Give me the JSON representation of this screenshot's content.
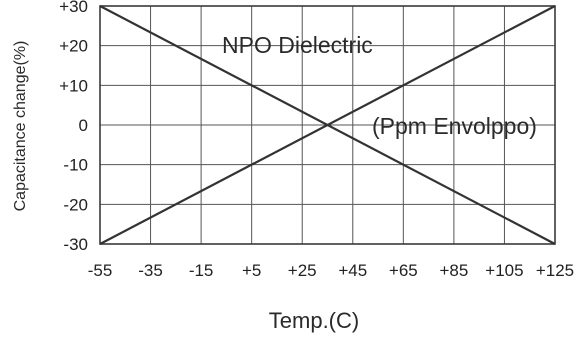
{
  "chart_data": {
    "type": "line",
    "xlabel": "Temp.(C)",
    "ylabel": "Capacitance change(%)",
    "x_ticks": [
      "-55",
      "-35",
      "-15",
      "+5",
      "+25",
      "+45",
      "+65",
      "+85",
      "+105",
      "+125"
    ],
    "y_ticks": [
      "+30",
      "+20",
      "+10",
      "0",
      "-10",
      "-20",
      "-30"
    ],
    "xlim": [
      -55,
      125
    ],
    "ylim": [
      -30,
      30
    ],
    "grid": true,
    "annotations": [
      "NPO Dielectric",
      "(Ppm Envolppo)"
    ],
    "series": [
      {
        "x": [
          -55,
          125
        ],
        "y": [
          30,
          -30
        ]
      },
      {
        "x": [
          -55,
          125
        ],
        "y": [
          -30,
          30
        ]
      }
    ]
  }
}
